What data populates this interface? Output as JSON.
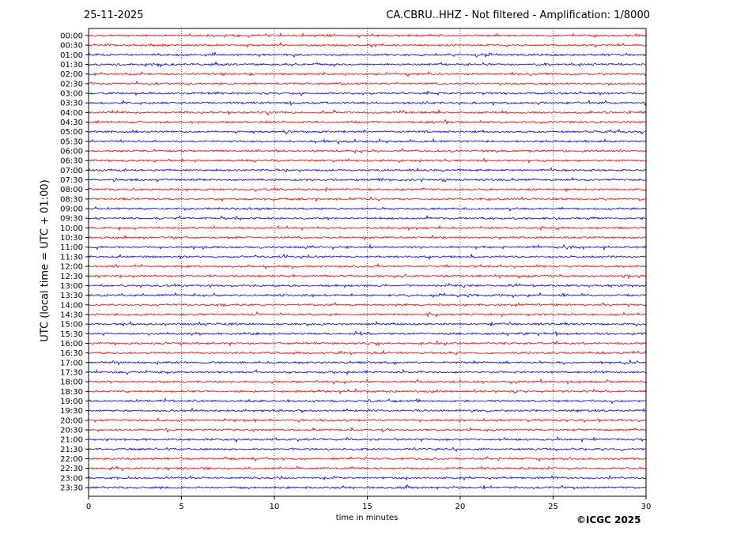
{
  "header": {
    "date": "25-11-2025",
    "title": "CA.CBRU..HHZ - Not filtered - Amplification: 1/8000"
  },
  "footer": {
    "copyright": "©ICGC 2025"
  },
  "chart_data": {
    "type": "line",
    "title": "CA.CBRU..HHZ - Not filtered - Amplification: 1/8000",
    "xlabel": "time in minutes",
    "ylabel": "UTC (local time = UTC + 01:00)",
    "xlim": [
      0,
      30
    ],
    "x_ticks": [
      "0",
      "5",
      "10",
      "15",
      "20",
      "25",
      "30"
    ],
    "grid": "vertical dotted lines every 5 minutes",
    "colors": [
      "#ff0000",
      "#0000ff"
    ],
    "color_pattern": "two red traces followed by two blue traces, repeating",
    "y_ticks": [
      "00:00",
      "00:30",
      "01:00",
      "01:30",
      "02:00",
      "02:30",
      "03:00",
      "03:30",
      "04:00",
      "04:30",
      "05:00",
      "05:30",
      "06:00",
      "06:30",
      "07:00",
      "07:30",
      "08:00",
      "08:30",
      "09:00",
      "09:30",
      "10:00",
      "10:30",
      "11:00",
      "11:30",
      "12:00",
      "12:30",
      "13:00",
      "13:30",
      "14:00",
      "14:30",
      "15:00",
      "15:30",
      "16:00",
      "16:30",
      "17:00",
      "17:30",
      "18:00",
      "18:30",
      "19:00",
      "19:30",
      "20:00",
      "20:30",
      "21:00",
      "21:30",
      "22:00",
      "22:30",
      "23:00",
      "23:30"
    ]
  }
}
